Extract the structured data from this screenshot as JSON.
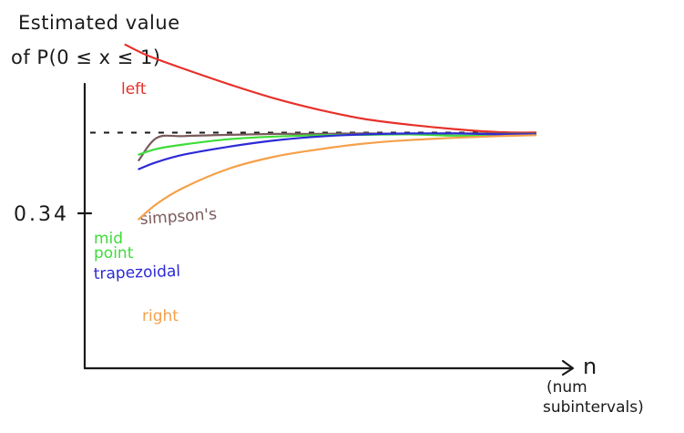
{
  "chart_data": {
    "type": "line",
    "ylabel_lines": [
      "Estimated value",
      "of P(0 ≤ x ≤ 1)"
    ],
    "xlabel": "n",
    "xlabel_note": "(num subintervals)",
    "ytick_label": "0.34",
    "ytick_value": 0.34,
    "ylim": [
      0.286,
      0.366
    ],
    "xlim": [
      0,
      100
    ],
    "reference_line": {
      "value": 0.34,
      "style": "dashed"
    },
    "series": [
      {
        "name": "left",
        "color": "#e8302a",
        "x": [
          9,
          14,
          22,
          32,
          42,
          52,
          62,
          72,
          82,
          92,
          100
        ],
        "values": [
          0.36,
          0.3575,
          0.3545,
          0.351,
          0.3478,
          0.3452,
          0.3431,
          0.3418,
          0.3408,
          0.3401,
          0.34
        ]
      },
      {
        "name": "simpson's",
        "color": "#7a5a5c",
        "x": [
          12,
          16,
          22,
          32,
          42,
          52,
          62,
          72,
          82,
          92,
          100
        ],
        "values": [
          0.3337,
          0.3388,
          0.3392,
          0.3395,
          0.3397,
          0.3397,
          0.3398,
          0.3397,
          0.3398,
          0.3398,
          0.3398
        ]
      },
      {
        "name": "mid point",
        "color": "#3fdc3a",
        "x": [
          12,
          16,
          22,
          32,
          42,
          52,
          62,
          72,
          82,
          92,
          100
        ],
        "values": [
          0.335,
          0.3363,
          0.3373,
          0.3385,
          0.3391,
          0.3394,
          0.3395,
          0.3396,
          0.3393,
          0.3394,
          0.3396
        ]
      },
      {
        "name": "trapezoidal",
        "color": "#2d2ad6",
        "x": [
          12,
          16,
          22,
          32,
          42,
          52,
          62,
          72,
          82,
          92,
          100
        ],
        "values": [
          0.3317,
          0.3333,
          0.335,
          0.3368,
          0.3382,
          0.3391,
          0.3396,
          0.3398,
          0.3398,
          0.3396,
          0.3396
        ]
      },
      {
        "name": "right",
        "color": "#f5a04a",
        "x": [
          12,
          16,
          22,
          32,
          42,
          52,
          62,
          72,
          82,
          92,
          100
        ],
        "values": [
          0.3203,
          0.3238,
          0.3275,
          0.3318,
          0.3345,
          0.3362,
          0.3375,
          0.3383,
          0.3388,
          0.3392,
          0.3394
        ]
      }
    ],
    "series_label_lines": {
      "left": [
        "left"
      ],
      "simpson's": [
        "simpson's"
      ],
      "mid point": [
        "mid",
        "point"
      ],
      "trapezoidal": [
        "trapezoidal"
      ],
      "right": [
        "right"
      ]
    },
    "grid": false,
    "legend": "none (labels next to curves)"
  }
}
